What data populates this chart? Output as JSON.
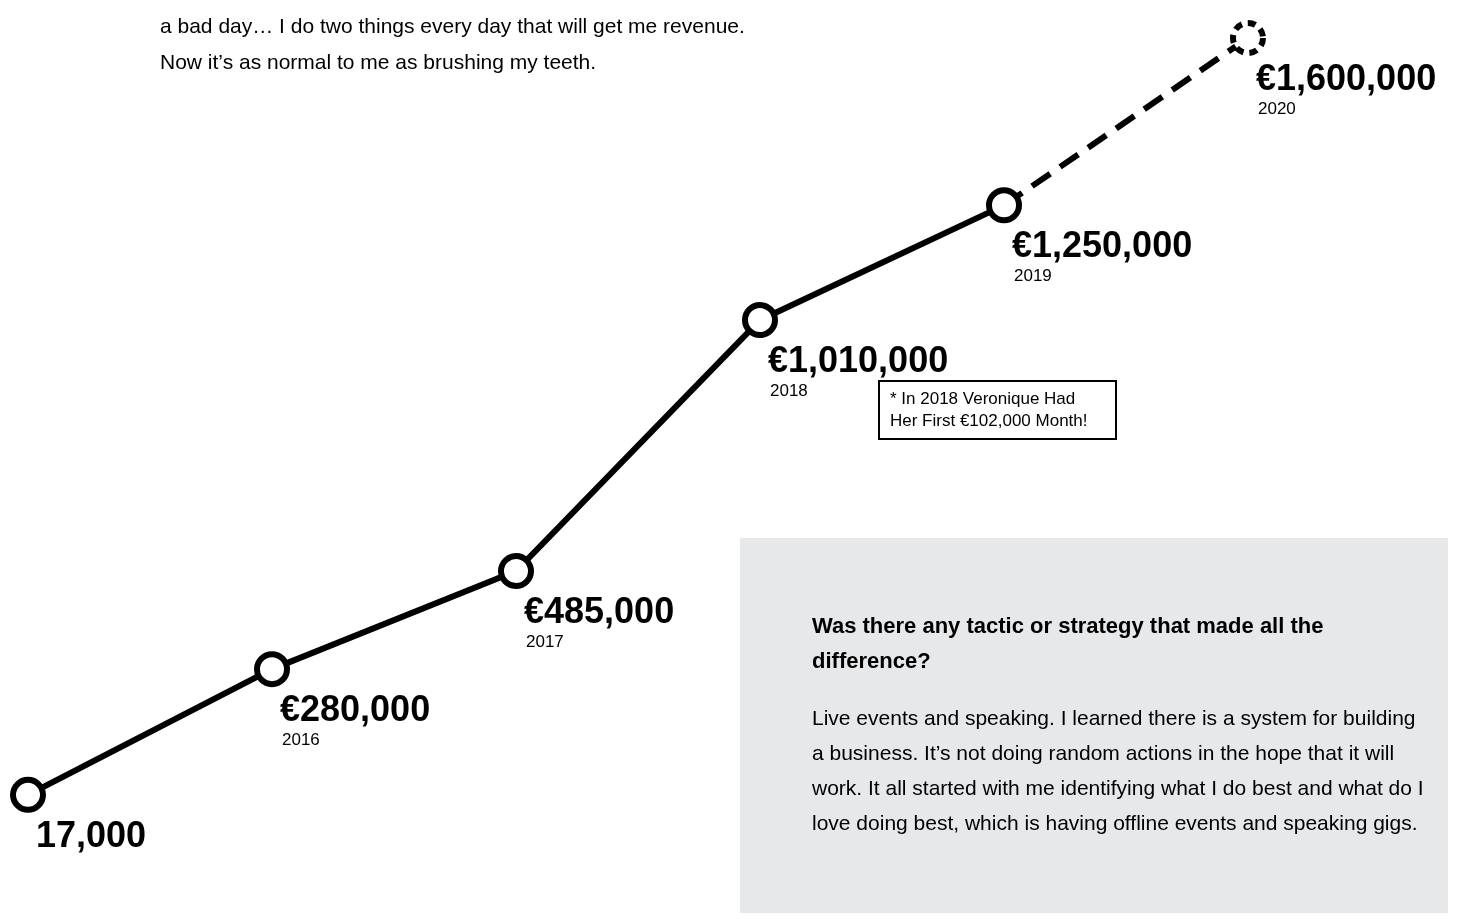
{
  "chart_data": {
    "type": "line",
    "categories": [
      null,
      "2016",
      "2017",
      "2018",
      "2019",
      "2020"
    ],
    "series": [
      {
        "color": "#000000",
        "values": [
          17000,
          280000,
          485000,
          1010000,
          1250000,
          null
        ],
        "line_style": "solid",
        "marker": "circle",
        "value_labels": [
          "17,000",
          "€280,000",
          "€485,000",
          "€1,010,000",
          "€1,250,000",
          null
        ]
      },
      {
        "color": "#000000",
        "values": [
          null,
          null,
          null,
          null,
          1250000,
          1600000
        ],
        "line_style": "dashed",
        "marker": "circle",
        "value_labels": [
          null,
          null,
          null,
          null,
          null,
          "€1,600,000"
        ]
      }
    ],
    "annotations": [
      "a bad day… I do two things every day that will get me revenue. Now it’s as normal to me as brushing my teeth.",
      "* In 2018 Veronique Had Her First €102,000 Month!",
      "Was there any tactic or strategy that made all the difference?",
      "Live events and speaking. I learned there is a system for building a business. It’s not doing random actions in the hope that it will work. It all started with me identifying what I do best and what do I love doing best, which is having offline events and speaking gigs."
    ],
    "legend": false,
    "grid": false
  }
}
